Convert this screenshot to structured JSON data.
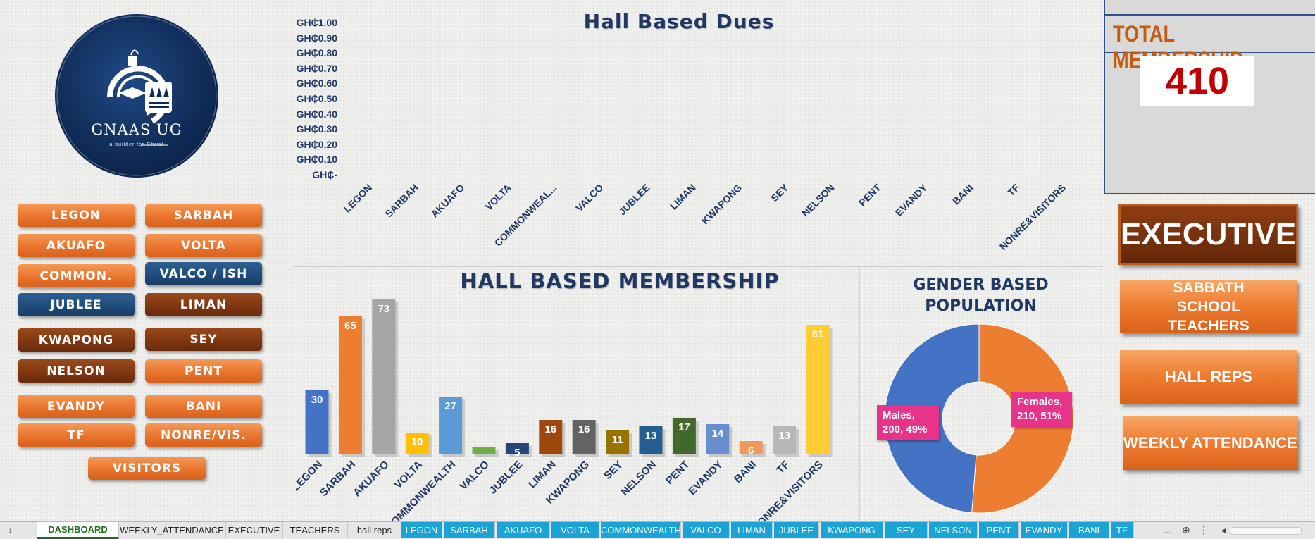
{
  "logo": {
    "text": "GNAAS UG",
    "tagline": "a builder for Christ"
  },
  "halls_left": [
    {
      "label": "LEGON",
      "color": "orange"
    },
    {
      "label": "AKUAFO",
      "color": "orange"
    },
    {
      "label": "COMMON.",
      "color": "orange"
    },
    {
      "label": "JUBLEE",
      "color": "blue"
    },
    {
      "label": "KWAPONG",
      "color": "brown"
    },
    {
      "label": "NELSON",
      "color": "brown"
    },
    {
      "label": "EVANDY",
      "color": "orange"
    },
    {
      "label": "TF",
      "color": "orange"
    }
  ],
  "halls_right": [
    {
      "label": "SARBAH",
      "color": "orange"
    },
    {
      "label": "VOLTA",
      "color": "orange"
    },
    {
      "label": "VALCO / ISH",
      "color": "blue"
    },
    {
      "label": "LIMAN",
      "color": "brown"
    },
    {
      "label": "SEY",
      "color": "brown"
    },
    {
      "label": "PENT",
      "color": "orange"
    },
    {
      "label": "BANI",
      "color": "orange"
    },
    {
      "label": "NONRE/VIS.",
      "color": "orange"
    }
  ],
  "visitors_button": "VISITORS",
  "dues_chart": {
    "title": "Hall Based Dues",
    "yticks": [
      "GH₵1.00",
      "GH₵0.90",
      "GH₵0.80",
      "GH₵0.70",
      "GH₵0.60",
      "GH₵0.50",
      "GH₵0.40",
      "GH₵0.30",
      "GH₵0.20",
      "GH₵0.10",
      "GH₵-"
    ],
    "categories": [
      "LEGON",
      "SARBAH",
      "AKUAFO",
      "VOLTA",
      "COMMONWEAL...",
      "VALCO",
      "JUBLEE",
      "LIMAN",
      "KWAPONG",
      "SEY",
      "NELSON",
      "PENT",
      "EVANDY",
      "BANI",
      "TF",
      "NONRE&VISITORS"
    ]
  },
  "chart_data": [
    {
      "type": "bar",
      "title": "HALL BASED MEMBERSHIP",
      "categories": [
        "LEGON",
        "SARBAH",
        "AKUAFO",
        "VOLTA",
        "COMMONWEALTH",
        "VALCO",
        "JUBLEE",
        "LIMAN",
        "KWAPONG",
        "SEY",
        "NELSON",
        "PENT",
        "EVANDY",
        "BANI",
        "TF",
        "NONRE&VISITORS"
      ],
      "values": [
        30,
        65,
        73,
        10,
        27,
        3,
        5,
        16,
        16,
        11,
        13,
        17,
        14,
        6,
        13,
        61
      ],
      "labels": [
        "30",
        "65",
        "73",
        "10",
        "27",
        "",
        "5",
        "16",
        "16",
        "11",
        "13",
        "17",
        "14",
        "6",
        "13",
        "61"
      ],
      "colors": [
        "#4472c4",
        "#ed7d31",
        "#a5a5a5",
        "#ffc000",
        "#5b9bd5",
        "#70ad47",
        "#264478",
        "#9e480e",
        "#636363",
        "#997300",
        "#255e91",
        "#43682b",
        "#698ed0",
        "#f1975a",
        "#b7b7b7",
        "#ffcd33"
      ],
      "ylim": [
        0,
        80
      ]
    },
    {
      "type": "pie",
      "title": "GENDER BASED POPULATION",
      "slices": [
        {
          "name": "Males",
          "value": 200,
          "percent": "49%",
          "color": "#4472c4",
          "label": "Males, 200, 49%"
        },
        {
          "name": "Females",
          "value": 210,
          "percent": "51%",
          "color": "#ed7d31",
          "label": "Females, 210, 51%"
        }
      ]
    }
  ],
  "total_membership": {
    "title": "TOTAL MEMBERSHIP",
    "value": "410"
  },
  "side_buttons": {
    "executive": "EXECUTIVE",
    "sabbath": "SABBATH SCHOOL TEACHERS",
    "hall_reps": "HALL REPS",
    "weekly": "WEEKLY ATTENDANCE"
  },
  "tabs": [
    {
      "label": "DASHBOARD",
      "style": "active"
    },
    {
      "label": "WEEKLY_ATTENDANCE",
      "style": "plain"
    },
    {
      "label": "EXECUTIVE",
      "style": "plain"
    },
    {
      "label": "TEACHERS",
      "style": "plain"
    },
    {
      "label": "hall reps",
      "style": "plain"
    },
    {
      "label": "LEGON",
      "style": "cyan"
    },
    {
      "label": "SARBAH",
      "style": "cyan"
    },
    {
      "label": "AKUAFO",
      "style": "cyan"
    },
    {
      "label": "VOLTA",
      "style": "cyan"
    },
    {
      "label": "COMMONWEALTH",
      "style": "cyan"
    },
    {
      "label": "VALCO",
      "style": "cyan"
    },
    {
      "label": "LIMAN",
      "style": "cyan"
    },
    {
      "label": "JUBLEE",
      "style": "cyan"
    },
    {
      "label": "KWAPONG",
      "style": "cyan"
    },
    {
      "label": "SEY",
      "style": "cyan"
    },
    {
      "label": "NELSON",
      "style": "cyan"
    },
    {
      "label": "PENT",
      "style": "cyan"
    },
    {
      "label": "EVANDY",
      "style": "cyan"
    },
    {
      "label": "BANI",
      "style": "cyan"
    },
    {
      "label": "TF",
      "style": "cyan"
    }
  ],
  "tab_more": "..."
}
